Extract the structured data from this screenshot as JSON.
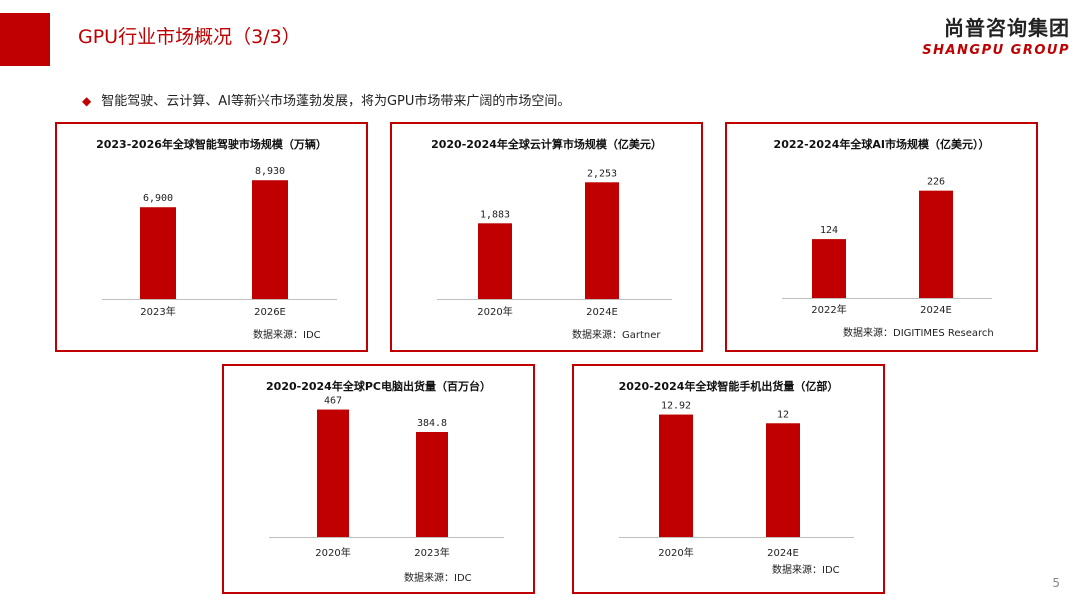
{
  "header": {
    "title": "GPU行业市场概况（3/3）",
    "logo_cn": "尚普咨询集团",
    "logo_en": "SHANGPU GROUP"
  },
  "headline": {
    "bullet": "◆",
    "text": "智能驾驶、云计算、AI等新兴市场蓬勃发展，将为GPU市场带来广阔的市场空间。"
  },
  "colors": {
    "accent": "#c00000",
    "bar": "#c00000",
    "axis": "#bfbfbf"
  },
  "chart_data": [
    {
      "type": "bar",
      "title": "2023-2026年全球智能驾驶市场规模（万辆）",
      "categories": [
        "2023年",
        "2026E"
      ],
      "values": [
        6900,
        8930
      ],
      "value_labels": [
        "6,900",
        "8,930"
      ],
      "ylim": [
        0,
        10000
      ],
      "grid": false,
      "source": "数据来源：IDC"
    },
    {
      "type": "bar",
      "title": "2020-2024年全球云计算市场规模（亿美元）",
      "categories": [
        "2020年",
        "2024E"
      ],
      "values": [
        1883,
        2253
      ],
      "value_labels": [
        "1,883",
        "2,253"
      ],
      "ylim": [
        1200,
        2400
      ],
      "grid": false,
      "source": "数据来源：Gartner"
    },
    {
      "type": "bar",
      "title": "2022-2024年全球AI市场规模（亿美元））",
      "categories": [
        "2022年",
        "2024E"
      ],
      "values": [
        124,
        226
      ],
      "value_labels": [
        "124",
        "226"
      ],
      "ylim": [
        0,
        240
      ],
      "grid": false,
      "source": "数据来源：DIGITIMES Research"
    },
    {
      "type": "bar",
      "title": "2020-2024年全球PC电脑出货量（百万台）",
      "categories": [
        "2020年",
        "2023年"
      ],
      "values": [
        467,
        384.8
      ],
      "value_labels": [
        "467",
        "384.8"
      ],
      "ylim": [
        0,
        480
      ],
      "grid": false,
      "source": "数据来源：IDC"
    },
    {
      "type": "bar",
      "title": "2020-2024年全球智能手机出货量（亿部）",
      "categories": [
        "2020年",
        "2024E"
      ],
      "values": [
        12.92,
        12
      ],
      "value_labels": [
        "12.92",
        "12"
      ],
      "ylim": [
        0,
        13.4
      ],
      "grid": false,
      "source": "数据来源：IDC"
    }
  ],
  "page_number": "5"
}
